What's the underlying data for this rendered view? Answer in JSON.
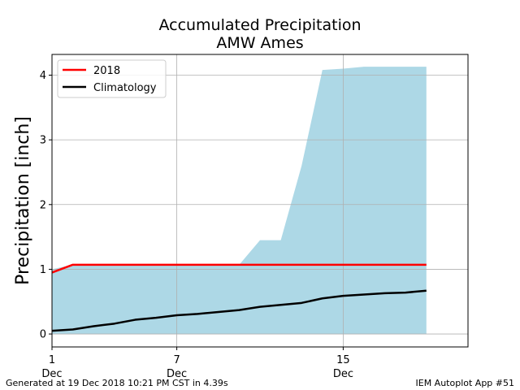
{
  "chart_data": {
    "type": "area",
    "title_line1": "Accumulated Precipitation",
    "title_line2": "AMW Ames",
    "ylabel": "Precipitation [inch]",
    "xlabel": "",
    "xlim": [
      1,
      21
    ],
    "ylim": [
      -0.2,
      4.32
    ],
    "grid": true,
    "legend_position": "upper-left",
    "x_ticks": [
      {
        "value": 1,
        "label1": "1",
        "label2": "Dec"
      },
      {
        "value": 7,
        "label1": "7",
        "label2": "Dec"
      },
      {
        "value": 15,
        "label1": "15",
        "label2": "Dec"
      }
    ],
    "y_ticks": [
      0,
      1,
      2,
      3,
      4
    ],
    "range_band": {
      "name": "",
      "color": "#add8e6",
      "x": [
        1,
        2,
        3,
        4,
        5,
        6,
        7,
        8,
        9,
        10,
        11,
        12,
        13,
        14,
        15,
        16,
        17,
        18,
        19
      ],
      "lower": [
        0,
        0,
        0,
        0,
        0,
        0,
        0,
        0,
        0,
        0,
        0,
        0,
        0,
        0,
        0,
        0,
        0,
        0,
        0
      ],
      "upper": [
        1.0,
        1.07,
        1.07,
        1.07,
        1.07,
        1.07,
        1.07,
        1.07,
        1.07,
        1.07,
        1.45,
        1.45,
        2.6,
        4.08,
        4.1,
        4.13,
        4.13,
        4.13,
        4.13
      ]
    },
    "series": [
      {
        "name": "2018",
        "color": "#ff0000",
        "x": [
          1,
          2,
          3,
          4,
          5,
          6,
          7,
          8,
          9,
          10,
          11,
          12,
          13,
          14,
          15,
          16,
          17,
          18,
          19
        ],
        "values": [
          0.95,
          1.07,
          1.07,
          1.07,
          1.07,
          1.07,
          1.07,
          1.07,
          1.07,
          1.07,
          1.07,
          1.07,
          1.07,
          1.07,
          1.07,
          1.07,
          1.07,
          1.07,
          1.07
        ]
      },
      {
        "name": "Climatology",
        "color": "#000000",
        "x": [
          1,
          2,
          3,
          4,
          5,
          6,
          7,
          8,
          9,
          10,
          11,
          12,
          13,
          14,
          15,
          16,
          17,
          18,
          19
        ],
        "values": [
          0.05,
          0.07,
          0.12,
          0.16,
          0.22,
          0.25,
          0.29,
          0.31,
          0.34,
          0.37,
          0.42,
          0.45,
          0.48,
          0.55,
          0.59,
          0.61,
          0.63,
          0.64,
          0.67
        ]
      }
    ]
  },
  "footer": {
    "left": "Generated at 19 Dec 2018 10:21 PM CST in 4.39s",
    "right": "IEM Autoplot App #51"
  }
}
